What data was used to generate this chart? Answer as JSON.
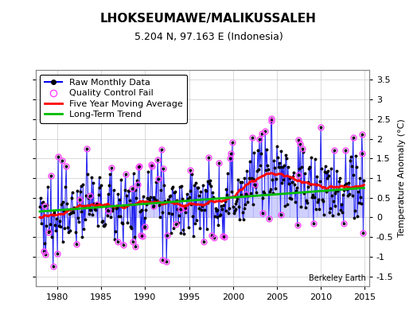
{
  "title": "LHOKSEUMAWE/MALIKUSSALEH",
  "subtitle": "5.204 N, 97.163 E (Indonesia)",
  "ylabel": "Temperature Anomaly (°C)",
  "attribution": "Berkeley Earth",
  "ylim": [
    -1.75,
    3.75
  ],
  "yticks": [
    -1.5,
    -1.0,
    -0.5,
    0.0,
    0.5,
    1.0,
    1.5,
    2.0,
    2.5,
    3.0,
    3.5
  ],
  "xlim": [
    1977.5,
    2015.5
  ],
  "xticks": [
    1980,
    1985,
    1990,
    1995,
    2000,
    2005,
    2010,
    2015
  ],
  "raw_color": "#0000ee",
  "stem_color": "#8888ff",
  "ma_color": "#ff0000",
  "trend_color": "#00bb00",
  "qc_color": "#ff44ff",
  "background_color": "#ffffff",
  "plot_bg": "#ffffff",
  "grid_color": "#cccccc",
  "title_fontsize": 11,
  "subtitle_fontsize": 9,
  "tick_fontsize": 8,
  "legend_fontsize": 8
}
